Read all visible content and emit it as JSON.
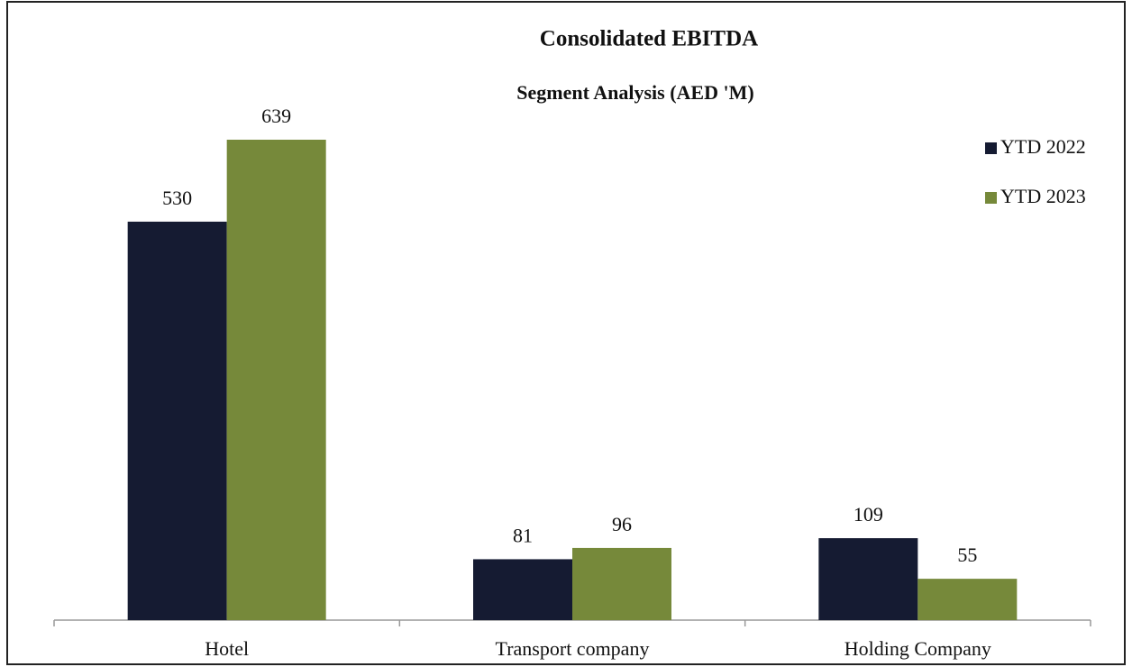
{
  "chart_data": {
    "type": "bar",
    "title": "Consolidated EBITDA",
    "subtitle": "Segment Analysis (AED 'M)",
    "categories": [
      "Hotel",
      "Transport company",
      "Holding Company"
    ],
    "series": [
      {
        "name": "YTD 2022",
        "color": "#151b32",
        "values": [
          530,
          81,
          109
        ]
      },
      {
        "name": "YTD 2023",
        "color": "#76893a",
        "values": [
          639,
          96,
          55
        ]
      }
    ],
    "legend": "right"
  }
}
